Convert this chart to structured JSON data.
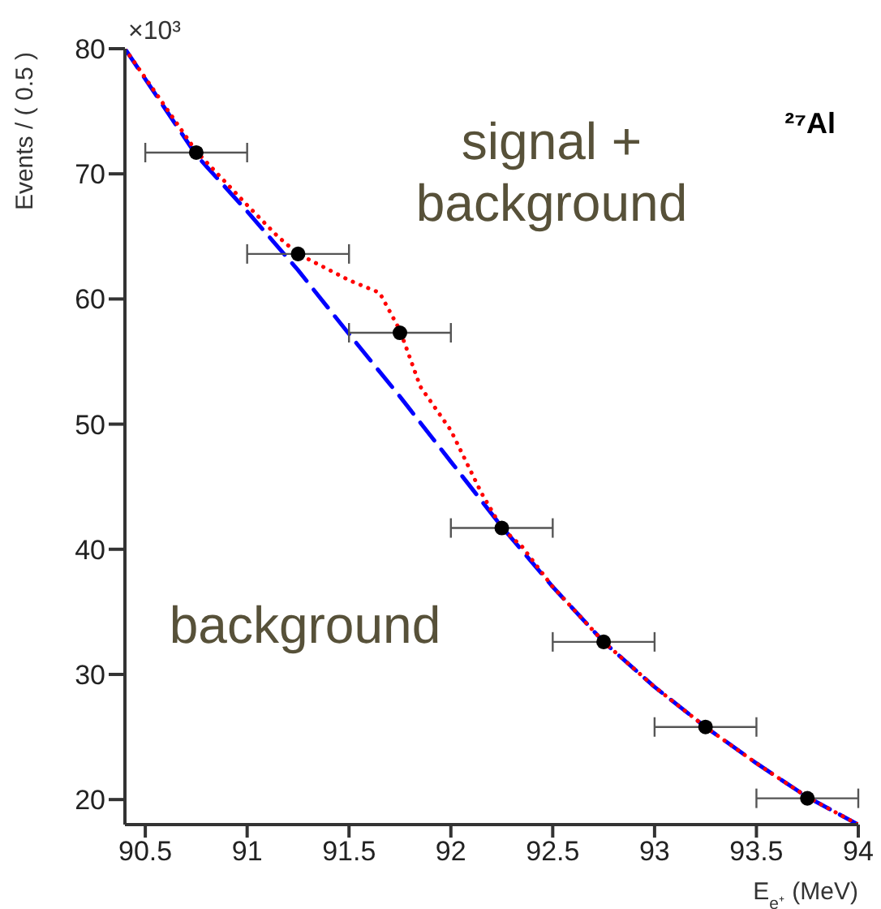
{
  "chart_data": {
    "type": "scatter",
    "xlabel": "E$_{e⁺}$ (MeV)",
    "ylabel": "Events / ( 0.5 )",
    "annotations": [
      "×10³",
      "signal + background",
      "background",
      "²⁷Al"
    ],
    "xlim": [
      90.4,
      94
    ],
    "xticks": [
      90.5,
      91,
      91.5,
      92,
      92.5,
      93,
      93.5,
      94
    ],
    "ylim": [
      18,
      80
    ],
    "yticks": [
      20,
      30,
      40,
      50,
      60,
      70,
      80
    ],
    "grid": false,
    "legend": false,
    "series": [
      {
        "type": "line",
        "color": "#0000ff",
        "line_style": "dashed",
        "marker": "none",
        "x": [
          90.4,
          90.75,
          91,
          91.25,
          91.5,
          91.75,
          92,
          92.25,
          92.5,
          92.75,
          93,
          93.25,
          93.5,
          93.75,
          94
        ],
        "values": [
          80,
          71.5,
          67,
          62.3,
          57.2,
          52.2,
          47,
          41.8,
          37,
          32.6,
          29,
          25.8,
          22.9,
          20.2,
          18
        ]
      },
      {
        "type": "line",
        "color": "#ff0000",
        "line_style": "dotted",
        "marker": "none",
        "x": [
          90.4,
          90.75,
          91,
          91.15,
          91.25,
          91.5,
          91.65,
          91.75,
          91.85,
          92,
          92.15,
          92.25,
          92.35,
          92.5,
          92.75,
          93,
          93.25,
          93.5,
          93.75,
          94
        ],
        "values": [
          80,
          71.8,
          67.5,
          65,
          63.6,
          61.5,
          60.5,
          57.5,
          53,
          49.5,
          44.5,
          41.7,
          40.2,
          37,
          32.6,
          29,
          25.8,
          22.9,
          20.2,
          18
        ]
      },
      {
        "color": "#000000",
        "marker": "circle",
        "x": [
          90.75,
          91.25,
          91.75,
          92.25,
          92.75,
          93.25,
          93.75
        ],
        "values": [
          71.7,
          63.6,
          57.3,
          41.7,
          32.6,
          25.8,
          20.1
        ],
        "xerrors": [
          0.25,
          0.25,
          0.25,
          0.25,
          0.25,
          0.25,
          0.25
        ]
      }
    ]
  }
}
